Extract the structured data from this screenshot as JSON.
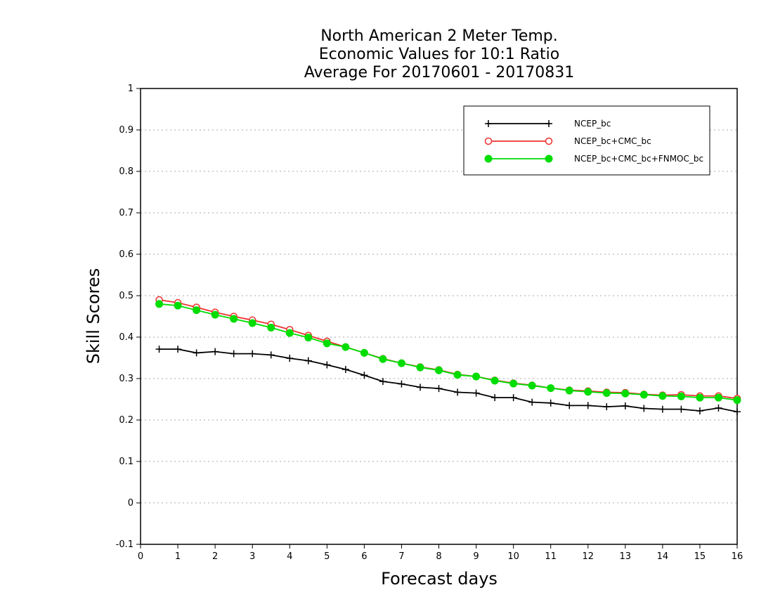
{
  "chart_data": {
    "type": "line",
    "title": [
      "North American 2 Meter Temp.",
      "Economic Values for 10:1 Ratio",
      "Average For 20170601 - 20170831"
    ],
    "xlabel": "Forecast days",
    "ylabel": "Skill Scores",
    "xlim": [
      0,
      16
    ],
    "ylim": [
      -0.1,
      1
    ],
    "xticks": [
      "0",
      "1",
      "2",
      "3",
      "4",
      "5",
      "6",
      "7",
      "8",
      "9",
      "10",
      "11",
      "12",
      "13",
      "14",
      "15",
      "16"
    ],
    "yticks": [
      "-0.1",
      "0",
      "0.1",
      "0.2",
      "0.3",
      "0.4",
      "0.5",
      "0.6",
      "0.7",
      "0.8",
      "0.9",
      "1"
    ],
    "grid": true,
    "legend_position": "top-right",
    "x": [
      0.5,
      1,
      1.5,
      2,
      2.5,
      3,
      3.5,
      4,
      4.5,
      5,
      5.5,
      6,
      6.5,
      7,
      7.5,
      8,
      8.5,
      9,
      9.5,
      10,
      10.5,
      11,
      11.5,
      12,
      12.5,
      13,
      13.5,
      14,
      14.5,
      15,
      15.5,
      16
    ],
    "series": [
      {
        "name": "NCEP_bc",
        "color": "#000000",
        "marker": "plus",
        "values": [
          0.371,
          0.371,
          0.362,
          0.365,
          0.36,
          0.36,
          0.357,
          0.349,
          0.343,
          0.333,
          0.322,
          0.308,
          0.293,
          0.287,
          0.279,
          0.276,
          0.267,
          0.265,
          0.254,
          0.254,
          0.243,
          0.241,
          0.235,
          0.235,
          0.232,
          0.234,
          0.228,
          0.226,
          0.226,
          0.222,
          0.229,
          0.22
        ]
      },
      {
        "name": "NCEP_bc+CMC_bc",
        "color": "#ee3030",
        "marker": "open-circle",
        "values": [
          0.49,
          0.483,
          0.472,
          0.46,
          0.45,
          0.441,
          0.431,
          0.418,
          0.404,
          0.39,
          0.376,
          0.362,
          0.348,
          0.337,
          0.328,
          0.321,
          0.31,
          0.305,
          0.296,
          0.289,
          0.284,
          0.277,
          0.272,
          0.27,
          0.267,
          0.266,
          0.262,
          0.26,
          0.261,
          0.258,
          0.258,
          0.252
        ]
      },
      {
        "name": "NCEP_bc+CMC_bc+FNMOC_bc",
        "color": "#00dd00",
        "marker": "filled-circle",
        "values": [
          0.48,
          0.476,
          0.465,
          0.454,
          0.444,
          0.434,
          0.423,
          0.41,
          0.399,
          0.385,
          0.376,
          0.362,
          0.347,
          0.337,
          0.327,
          0.32,
          0.309,
          0.305,
          0.295,
          0.288,
          0.283,
          0.277,
          0.271,
          0.268,
          0.265,
          0.264,
          0.261,
          0.258,
          0.257,
          0.254,
          0.254,
          0.248
        ]
      }
    ]
  }
}
